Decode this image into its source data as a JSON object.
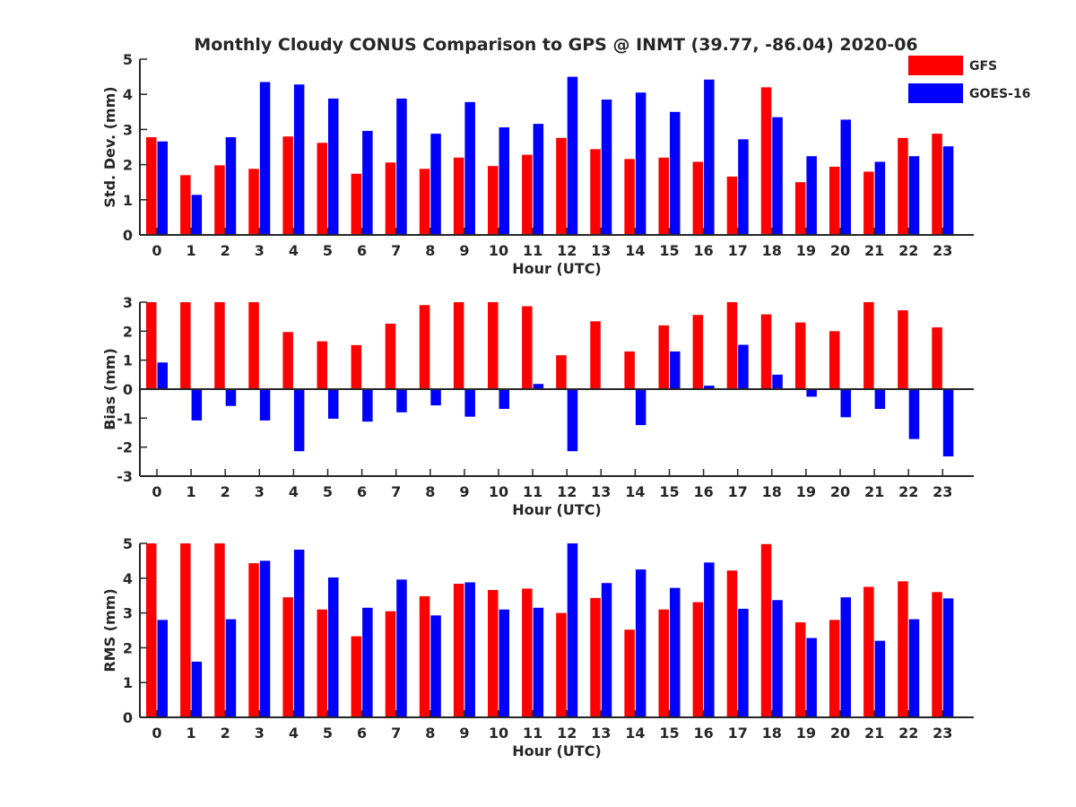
{
  "figure": {
    "title": "Monthly Cloudy CONUS Comparison to GPS @ INMT (39.77, -86.04) 2020-06"
  },
  "legend": {
    "placement": "top-right",
    "entries": [
      {
        "label": "GFS",
        "color": "#ff0000"
      },
      {
        "label": "GOES-16",
        "color": "#0000ff"
      }
    ]
  },
  "chart_data": [
    {
      "type": "bar",
      "ylabel": "Std. Dev. (mm)",
      "xlabel": "Hour (UTC)",
      "ylim": [
        0,
        5
      ],
      "yticks": [
        0,
        1,
        2,
        3,
        4,
        5
      ],
      "categories": [
        "0",
        "1",
        "2",
        "3",
        "4",
        "5",
        "6",
        "7",
        "8",
        "9",
        "10",
        "11",
        "12",
        "13",
        "14",
        "15",
        "16",
        "17",
        "18",
        "19",
        "20",
        "21",
        "22",
        "23"
      ],
      "series": [
        {
          "name": "GFS",
          "color": "#ff0000",
          "values": [
            2.78,
            1.7,
            1.98,
            1.88,
            2.8,
            2.62,
            1.74,
            2.06,
            1.88,
            2.2,
            1.96,
            2.28,
            2.76,
            2.44,
            2.16,
            2.2,
            2.08,
            1.66,
            4.2,
            1.5,
            1.94,
            1.8,
            2.76,
            2.88
          ]
        },
        {
          "name": "GOES-16",
          "color": "#0000ff",
          "values": [
            2.66,
            1.14,
            2.78,
            4.35,
            4.28,
            3.88,
            2.96,
            3.88,
            2.88,
            3.78,
            3.06,
            3.16,
            4.5,
            3.85,
            4.05,
            3.5,
            4.42,
            2.72,
            3.35,
            2.24,
            3.28,
            2.08,
            2.24,
            2.52
          ]
        }
      ]
    },
    {
      "type": "bar",
      "ylabel": "Bias (mm)",
      "xlabel": "Hour (UTC)",
      "ylim": [
        -3,
        3
      ],
      "yticks": [
        -3,
        -2,
        -1,
        0,
        1,
        2,
        3
      ],
      "zero_line": true,
      "categories": [
        "0",
        "1",
        "2",
        "3",
        "4",
        "5",
        "6",
        "7",
        "8",
        "9",
        "10",
        "11",
        "12",
        "13",
        "14",
        "15",
        "16",
        "17",
        "18",
        "19",
        "20",
        "21",
        "22",
        "23"
      ],
      "series": [
        {
          "name": "GFS",
          "color": "#ff0000",
          "values": [
            3.0,
            3.0,
            3.0,
            3.0,
            1.97,
            1.65,
            1.52,
            2.26,
            2.9,
            3.0,
            3.0,
            2.86,
            1.17,
            2.34,
            1.3,
            2.2,
            2.56,
            3.0,
            2.58,
            2.3,
            2.0,
            3.0,
            2.72,
            2.13
          ]
        },
        {
          "name": "GOES-16",
          "color": "#0000ff",
          "values": [
            0.92,
            -1.08,
            -0.58,
            -1.08,
            -2.14,
            -1.02,
            -1.12,
            -0.8,
            -0.56,
            -0.95,
            -0.68,
            0.18,
            -2.14,
            0.03,
            -1.24,
            1.3,
            0.12,
            1.53,
            0.5,
            -0.26,
            -0.97,
            -0.68,
            -1.72,
            -2.32
          ]
        }
      ]
    },
    {
      "type": "bar",
      "ylabel": "RMS (mm)",
      "xlabel": "Hour (UTC)",
      "ylim": [
        0,
        5
      ],
      "yticks": [
        0,
        1,
        2,
        3,
        4,
        5
      ],
      "categories": [
        "0",
        "1",
        "2",
        "3",
        "4",
        "5",
        "6",
        "7",
        "8",
        "9",
        "10",
        "11",
        "12",
        "13",
        "14",
        "15",
        "16",
        "17",
        "18",
        "19",
        "20",
        "21",
        "22",
        "23"
      ],
      "series": [
        {
          "name": "GFS",
          "color": "#ff0000",
          "values": [
            5.0,
            5.0,
            5.0,
            4.43,
            3.45,
            3.1,
            2.33,
            3.05,
            3.48,
            3.84,
            3.66,
            3.7,
            3.0,
            3.43,
            2.52,
            3.1,
            3.31,
            4.22,
            4.98,
            2.73,
            2.8,
            3.75,
            3.91,
            3.6
          ]
        },
        {
          "name": "GOES-16",
          "color": "#0000ff",
          "values": [
            2.8,
            1.6,
            2.82,
            4.5,
            4.82,
            4.02,
            3.15,
            3.96,
            2.93,
            3.88,
            3.1,
            3.15,
            5.0,
            3.86,
            4.25,
            3.72,
            4.45,
            3.12,
            3.37,
            2.28,
            3.45,
            2.2,
            2.82,
            3.42
          ]
        }
      ]
    }
  ]
}
